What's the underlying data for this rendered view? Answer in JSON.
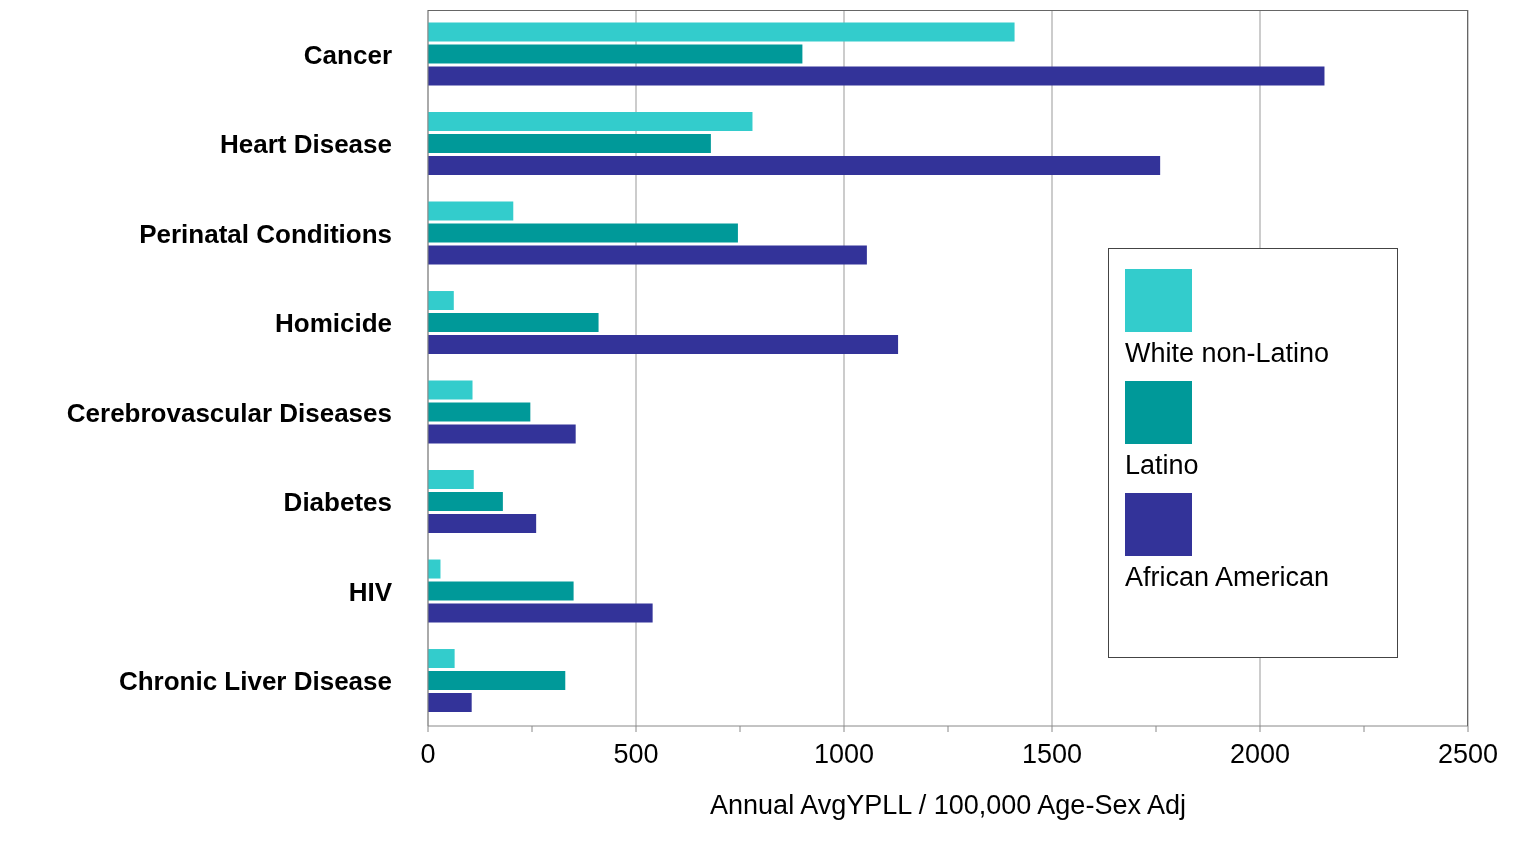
{
  "chart_data": {
    "type": "bar",
    "orientation": "horizontal",
    "xlabel": "Annual AvgYPLL / 100,000 Age-Sex Adj",
    "categories": [
      "Cancer",
      "Heart Disease",
      "Perinatal Conditions",
      "Homicide",
      "Cerebrovascular Diseases",
      "Diabetes",
      "HIV",
      "Chronic Liver Disease"
    ],
    "series": [
      {
        "name": "White non-Latino",
        "color": "#33cccc",
        "values": [
          1410,
          780,
          205,
          62,
          107,
          110,
          30,
          64
        ]
      },
      {
        "name": "Latino",
        "color": "#009999",
        "values": [
          900,
          680,
          745,
          410,
          246,
          180,
          350,
          330
        ]
      },
      {
        "name": "African American",
        "color": "#333399",
        "values": [
          2155,
          1760,
          1055,
          1130,
          355,
          260,
          540,
          105
        ]
      }
    ],
    "xlim": [
      0,
      2500
    ],
    "xticks": [
      0,
      {
        "value": 250,
        "label": null
      },
      500,
      {
        "value": 750,
        "label": null
      },
      1000,
      {
        "value": 1250,
        "label": null
      },
      1500,
      {
        "value": 1750,
        "label": null
      },
      2000,
      {
        "value": 2250,
        "label": null
      },
      2500
    ],
    "grid": "x",
    "legend": "right"
  }
}
